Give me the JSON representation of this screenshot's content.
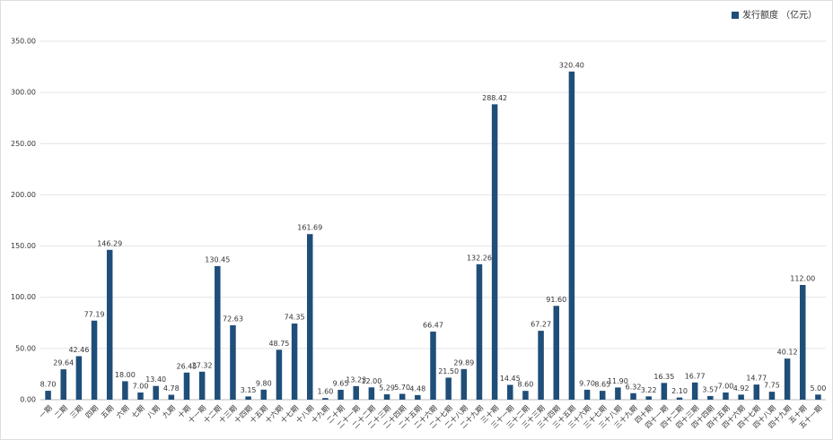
{
  "chart_data": {
    "type": "bar",
    "categories": [
      "一期",
      "二期",
      "三期",
      "四期",
      "五期",
      "六期",
      "七期",
      "八期",
      "九期",
      "十期",
      "十一期",
      "十二期",
      "十三期",
      "十四期",
      "十五期",
      "十六期",
      "十七期",
      "十八期",
      "十九期",
      "二十期",
      "二十一期",
      "二十二期",
      "二十三期",
      "二十四期",
      "二十五期",
      "二十六期",
      "二十七期",
      "二十八期",
      "二十九期",
      "三十期",
      "三十一期",
      "三十二期",
      "三十三期",
      "三十四期",
      "三十五期",
      "三十六期",
      "三十七期",
      "三十八期",
      "三十九期",
      "四十期",
      "四十一期",
      "四十二期",
      "四十三期",
      "四十四期",
      "四十五期",
      "四十六期",
      "四十七期",
      "四十八期",
      "四十九期",
      "五十期",
      "五十一期"
    ],
    "series": [
      {
        "name": "发行额度 （亿元）",
        "color": "#1f4e79",
        "values": [
          8.7,
          29.64,
          42.46,
          77.19,
          146.29,
          18,
          7,
          13.4,
          4.78,
          26.45,
          27.32,
          130.45,
          72.63,
          3.15,
          9.8,
          48.75,
          74.35,
          161.69,
          1.6,
          9.65,
          13.23,
          12,
          5.29,
          5.7,
          4.48,
          66.47,
          21.5,
          29.89,
          132.26,
          288.42,
          14.45,
          8.6,
          67.27,
          91.6,
          320.4,
          9.7,
          8.65,
          11.9,
          6.32,
          3.22,
          16.35,
          2.1,
          16.77,
          3.57,
          7,
          4.92,
          14.77,
          7.75,
          40.12,
          112,
          5
        ],
        "value_labels": [
          "8.70",
          "29.64",
          "42.46",
          "77.19",
          "146.29",
          "18.00",
          "7.00",
          "13.40",
          "4.78",
          "26.45",
          "27.32",
          "130.45",
          "72.63",
          "3.15",
          "9.80",
          "48.75",
          "74.35",
          "161.69",
          "1.60",
          "9.65",
          "13.23",
          "12.00",
          "5.29",
          "5.70",
          "4.48",
          "66.47",
          "21.50",
          "29.89",
          "132.26",
          "288.42",
          "14.45",
          "8.60",
          "67.27",
          "91.60",
          "320.40",
          "9.70",
          "8.65",
          "11.90",
          "6.32",
          "3.22",
          "16.35",
          "2.10",
          "16.77",
          "3.57",
          "7.00",
          "4.92",
          "14.77",
          "7.75",
          "40.12",
          "112.00",
          "5.00"
        ]
      }
    ],
    "ylim": [
      0,
      350
    ],
    "yticks": [
      {
        "value": 0,
        "label": "0.00"
      },
      {
        "value": 50,
        "label": "50.00"
      },
      {
        "value": 100,
        "label": "100.00"
      },
      {
        "value": 150,
        "label": "150.00"
      },
      {
        "value": 200,
        "label": "200.00"
      },
      {
        "value": 250,
        "label": "250.00"
      },
      {
        "value": 300,
        "label": "300.00"
      },
      {
        "value": 350,
        "label": "350.00"
      }
    ],
    "grid": true,
    "legend": "upper right"
  }
}
